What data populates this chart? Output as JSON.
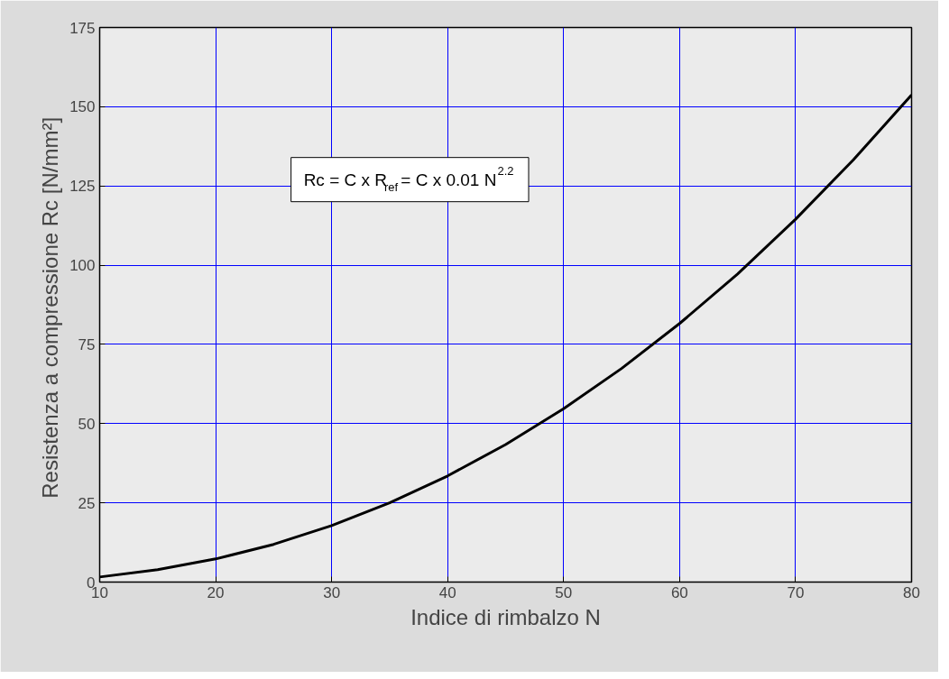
{
  "chart_data": {
    "type": "line",
    "xlabel": "Indice di rimbalzo N",
    "ylabel": "Resistenza a compressione  Rc [N/mm²]",
    "x": [
      10,
      15,
      20,
      25,
      30,
      35,
      40,
      45,
      50,
      55,
      60,
      65,
      70,
      75,
      80
    ],
    "series": [
      {
        "color": "#000000",
        "values": [
          1.6,
          3.9,
          7.3,
          11.9,
          17.8,
          25.0,
          33.5,
          43.4,
          54.7,
          67.4,
          81.6,
          97.2,
          114.5,
          133.3,
          153.7
        ]
      }
    ],
    "xlim": [
      10,
      80
    ],
    "ylim": [
      0,
      175
    ],
    "xticks": [
      10,
      20,
      30,
      40,
      50,
      60,
      70,
      80
    ],
    "yticks": [
      0,
      25,
      50,
      75,
      100,
      125,
      150,
      175
    ],
    "grid": true,
    "marker": "none",
    "line_style": "solid",
    "annotations": [
      "Rc = C x R$_{ref}$= C x 0.01 N$^{2.2}$"
    ]
  }
}
